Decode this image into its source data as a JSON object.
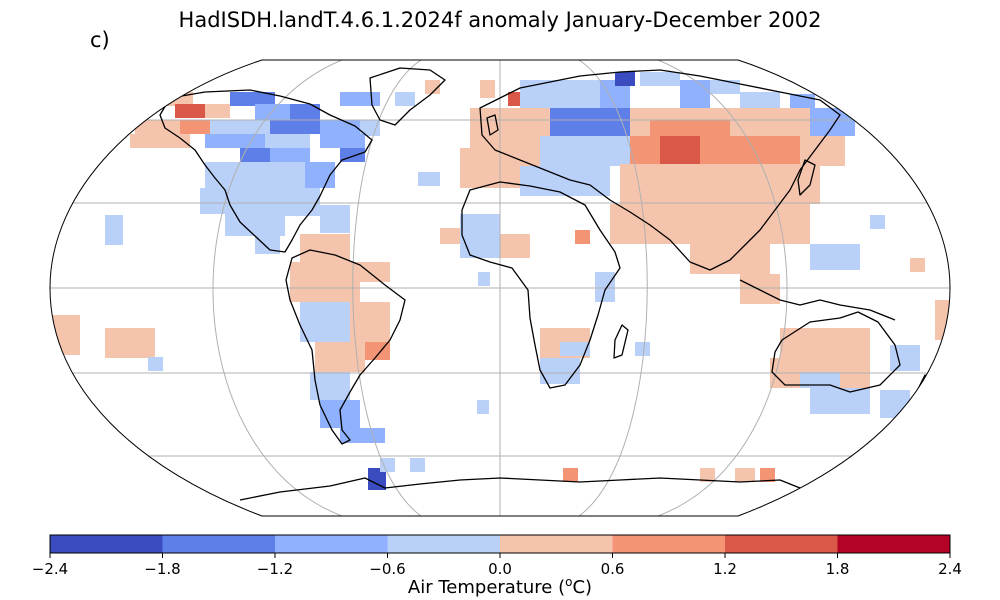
{
  "figure": {
    "title": "HadISDH.landT.4.6.1.2024f anomaly January-December 2002",
    "panel_label": "c)"
  },
  "colorbar": {
    "label_prefix": "Air Temperature (",
    "label_sup": "o",
    "label_suffix": "C)",
    "ticks": [
      "−2.4",
      "−1.8",
      "−1.2",
      "−0.6",
      "0.0",
      "0.6",
      "1.2",
      "1.8",
      "2.4"
    ],
    "bins": [
      {
        "min": -2.4,
        "max": -1.8,
        "color": "#3b4cc0"
      },
      {
        "min": -1.8,
        "max": -1.2,
        "color": "#5f7fe8"
      },
      {
        "min": -1.2,
        "max": -0.6,
        "color": "#8fb1fe"
      },
      {
        "min": -0.6,
        "max": 0.0,
        "color": "#b9d0f9"
      },
      {
        "min": 0.0,
        "max": 0.6,
        "color": "#f5c4ac"
      },
      {
        "min": 0.6,
        "max": 1.2,
        "color": "#f39475"
      },
      {
        "min": 1.2,
        "max": 1.8,
        "color": "#d95847"
      },
      {
        "min": 1.8,
        "max": 2.4,
        "color": "#b40426"
      }
    ]
  },
  "map": {
    "projection": "Robinson",
    "gridlines": {
      "lon_step_deg": 60,
      "lat_step_deg": 30,
      "color": "#b0b0b0"
    },
    "grid_cell_deg": 5
  }
}
